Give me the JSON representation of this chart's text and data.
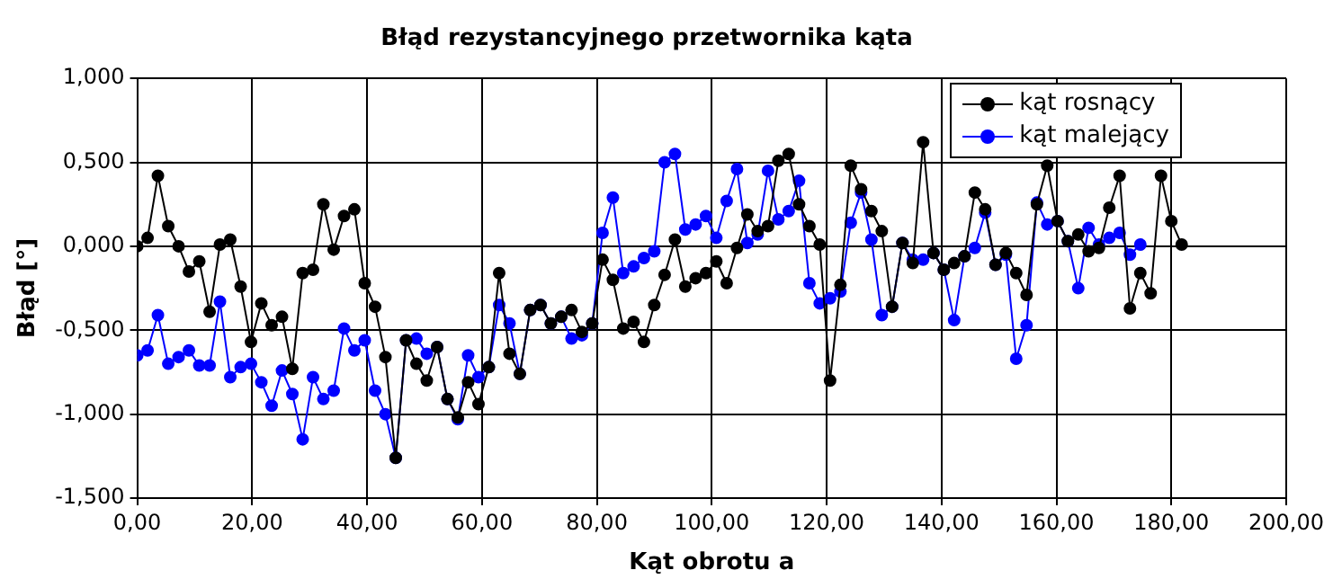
{
  "chart_data": {
    "type": "line",
    "title": "Błąd rezystancyjnego przetwornika kąta",
    "xlabel": "Kąt obrotu a",
    "ylabel": "Błąd [°]",
    "x": [
      0,
      1.8,
      3.6,
      5.4,
      7.2,
      9,
      10.8,
      12.6,
      14.4,
      16.2,
      18,
      19.8,
      21.6,
      23.4,
      25.2,
      27,
      28.8,
      30.6,
      32.4,
      34.2,
      36,
      37.8,
      39.6,
      41.4,
      43.2,
      45,
      46.8,
      48.6,
      50.4,
      52.2,
      54,
      55.8,
      57.6,
      59.4,
      61.2,
      63,
      64.8,
      66.6,
      68.4,
      70.2,
      72,
      73.8,
      75.6,
      77.4,
      79.2,
      81,
      82.8,
      84.6,
      86.4,
      88.2,
      90,
      91.8,
      93.6,
      95.4,
      97.2,
      99,
      100.8,
      102.6,
      104.4,
      106.2,
      108,
      109.8,
      111.6,
      113.4,
      115.2,
      117,
      118.8,
      120.6,
      122.4,
      124.2,
      126,
      127.8,
      129.6,
      131.4,
      133.2,
      135,
      136.8,
      138.6,
      140.4,
      142.2,
      144,
      145.8,
      147.6,
      149.4,
      151.2,
      153,
      154.8,
      156.6,
      158.4,
      160.2,
      162,
      163.8,
      165.6,
      167.4,
      169.2,
      171,
      172.8,
      174.6,
      176.4,
      178.2,
      180,
      181.8
    ],
    "series": [
      {
        "name": "kąt rosnący",
        "color": "#000000",
        "values": [
          0.0,
          0.05,
          0.42,
          0.12,
          0.0,
          -0.15,
          -0.09,
          -0.39,
          0.01,
          0.04,
          -0.24,
          -0.57,
          -0.34,
          -0.47,
          -0.42,
          -0.73,
          -0.16,
          -0.14,
          0.25,
          -0.02,
          0.18,
          0.22,
          -0.22,
          -0.36,
          -0.66,
          -1.26,
          -0.56,
          -0.7,
          -0.8,
          -0.6,
          -0.91,
          -1.02,
          -0.81,
          -0.94,
          -0.72,
          -0.16,
          -0.64,
          -0.76,
          -0.38,
          -0.35,
          -0.46,
          -0.42,
          -0.38,
          -0.51,
          -0.46,
          -0.08,
          -0.2,
          -0.49,
          -0.45,
          -0.57,
          -0.35,
          -0.17,
          0.04,
          -0.24,
          -0.19,
          -0.16,
          -0.09,
          -0.22,
          -0.01,
          0.19,
          0.09,
          0.12,
          0.51,
          0.55,
          0.25,
          0.12,
          0.01,
          -0.8,
          -0.23,
          0.48,
          0.34,
          0.21,
          0.09,
          -0.36,
          0.02,
          -0.1,
          0.62,
          -0.04,
          -0.14,
          -0.1,
          -0.06,
          0.32,
          0.22,
          -0.11,
          -0.04,
          -0.16,
          -0.29,
          0.25,
          0.48,
          0.15,
          0.03,
          0.07,
          -0.03,
          -0.01,
          0.23,
          0.42,
          -0.37,
          -0.16,
          -0.28,
          0.42,
          0.15,
          0.01
        ]
      },
      {
        "name": "kąt malejący",
        "color": "#0000ff",
        "values": [
          -0.65,
          -0.62,
          -0.41,
          -0.7,
          -0.66,
          -0.62,
          -0.71,
          -0.71,
          -0.33,
          -0.78,
          -0.72,
          -0.7,
          -0.81,
          -0.95,
          -0.74,
          -0.88,
          -1.15,
          -0.78,
          -0.91,
          -0.86,
          -0.49,
          -0.62,
          -0.56,
          -0.86,
          -1.0,
          -1.26,
          -0.56,
          -0.55,
          -0.64,
          -0.6,
          -0.91,
          -1.03,
          -0.65,
          -0.78,
          -0.72,
          -0.35,
          -0.46,
          -0.76,
          -0.38,
          -0.35,
          -0.46,
          -0.42,
          -0.55,
          -0.53,
          -0.46,
          0.08,
          0.29,
          -0.16,
          -0.12,
          -0.07,
          -0.03,
          0.5,
          0.55,
          0.1,
          0.13,
          0.18,
          0.05,
          0.27,
          0.46,
          0.02,
          0.07,
          0.45,
          0.16,
          0.21,
          0.39,
          -0.22,
          -0.34,
          -0.31,
          -0.27,
          0.14,
          0.32,
          0.04,
          -0.41,
          -0.36,
          0.02,
          -0.08,
          -0.08,
          -0.04,
          -0.14,
          -0.44,
          -0.06,
          -0.01,
          0.2,
          -0.11,
          -0.05,
          -0.67,
          -0.47,
          0.26,
          0.13,
          0.15,
          0.03,
          -0.25,
          0.11,
          0.01,
          0.05,
          0.08,
          -0.05,
          0.01,
          null,
          null,
          null,
          null
        ]
      }
    ],
    "xlim": [
      0,
      200
    ],
    "xticks": [
      {
        "value": 0,
        "label": "0,00"
      },
      {
        "value": 20,
        "label": "20,00"
      },
      {
        "value": 40,
        "label": "40,00"
      },
      {
        "value": 60,
        "label": "60,00"
      },
      {
        "value": 80,
        "label": "80,00"
      },
      {
        "value": 100,
        "label": "100,00"
      },
      {
        "value": 120,
        "label": "120,00"
      },
      {
        "value": 140,
        "label": "140,00"
      },
      {
        "value": 160,
        "label": "160,00"
      },
      {
        "value": 180,
        "label": "180,00"
      },
      {
        "value": 200,
        "label": "200,00"
      }
    ],
    "ylim": [
      -1.5,
      1
    ],
    "yticks": [
      {
        "value": -1.5,
        "label": "-1,500"
      },
      {
        "value": -1,
        "label": "-1,000"
      },
      {
        "value": -0.5,
        "label": "-0,500"
      },
      {
        "value": 0,
        "label": "0,000"
      },
      {
        "value": 0.5,
        "label": "0,500"
      },
      {
        "value": 1,
        "label": "1,000"
      }
    ],
    "grid": true,
    "legend": "top right",
    "marker": "circle",
    "line_style": "solid"
  }
}
